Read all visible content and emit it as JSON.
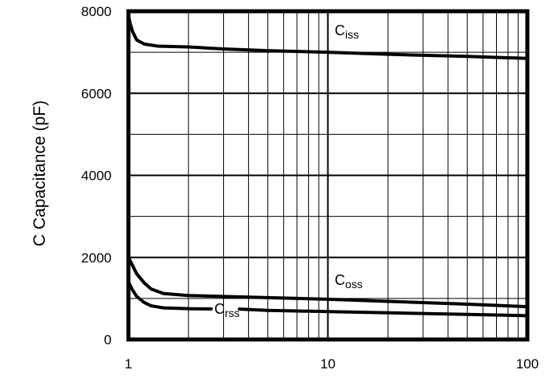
{
  "chart_data": {
    "type": "line",
    "title": "",
    "xlabel": "",
    "ylabel": "C Capacitance (pF)",
    "x_scale": "log",
    "xlim": [
      1,
      100
    ],
    "ylim": [
      0,
      8000
    ],
    "grid": true,
    "legend": "none",
    "x_tick_labels": [
      "1",
      "10",
      "100"
    ],
    "x_ticks": [
      1,
      10,
      100
    ],
    "x_minor_ticks": [
      2,
      3,
      4,
      5,
      6,
      7,
      8,
      9,
      20,
      30,
      40,
      50,
      60,
      70,
      80,
      90
    ],
    "y_tick_labels": [
      "0",
      "2000",
      "4000",
      "6000",
      "8000"
    ],
    "y_ticks": [
      0,
      2000,
      4000,
      6000,
      8000
    ],
    "series": [
      {
        "name": "Ciss",
        "label_main": "C",
        "label_sub": "iss",
        "color": "#000000",
        "points": [
          [
            1.0,
            7900
          ],
          [
            1.02,
            7700
          ],
          [
            1.05,
            7500
          ],
          [
            1.1,
            7300
          ],
          [
            1.2,
            7200
          ],
          [
            1.4,
            7150
          ],
          [
            2,
            7130
          ],
          [
            3,
            7080
          ],
          [
            5,
            7040
          ],
          [
            10,
            7000
          ],
          [
            20,
            6950
          ],
          [
            50,
            6900
          ],
          [
            100,
            6850
          ]
        ]
      },
      {
        "name": "Coss",
        "label_main": "C",
        "label_sub": "oss",
        "color": "#000000",
        "points": [
          [
            1.0,
            2000
          ],
          [
            1.05,
            1800
          ],
          [
            1.1,
            1600
          ],
          [
            1.2,
            1380
          ],
          [
            1.3,
            1230
          ],
          [
            1.5,
            1120
          ],
          [
            2,
            1070
          ],
          [
            3,
            1050
          ],
          [
            5,
            1020
          ],
          [
            10,
            980
          ],
          [
            20,
            930
          ],
          [
            50,
            860
          ],
          [
            100,
            800
          ]
        ]
      },
      {
        "name": "Crss",
        "label_main": "C",
        "label_sub": "rss",
        "color": "#000000",
        "segments": [
          [
            [
              1.0,
              1400
            ],
            [
              1.05,
              1200
            ],
            [
              1.1,
              1050
            ],
            [
              1.2,
              900
            ],
            [
              1.3,
              820
            ],
            [
              1.5,
              770
            ],
            [
              2,
              750
            ],
            [
              2.6,
              745
            ]
          ],
          [
            [
              3.6,
              740
            ],
            [
              5,
              710
            ],
            [
              10,
              680
            ],
            [
              20,
              650
            ],
            [
              50,
              610
            ],
            [
              100,
              580
            ]
          ]
        ]
      }
    ]
  }
}
